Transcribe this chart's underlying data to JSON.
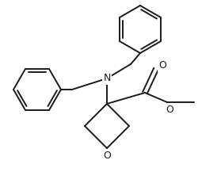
{
  "bg_color": "#ffffff",
  "line_color": "#1a1a1a",
  "lw": 1.4,
  "fig_width": 2.5,
  "fig_height": 2.36,
  "dpi": 100,
  "xlim": [
    0,
    250
  ],
  "ylim": [
    0,
    236
  ]
}
